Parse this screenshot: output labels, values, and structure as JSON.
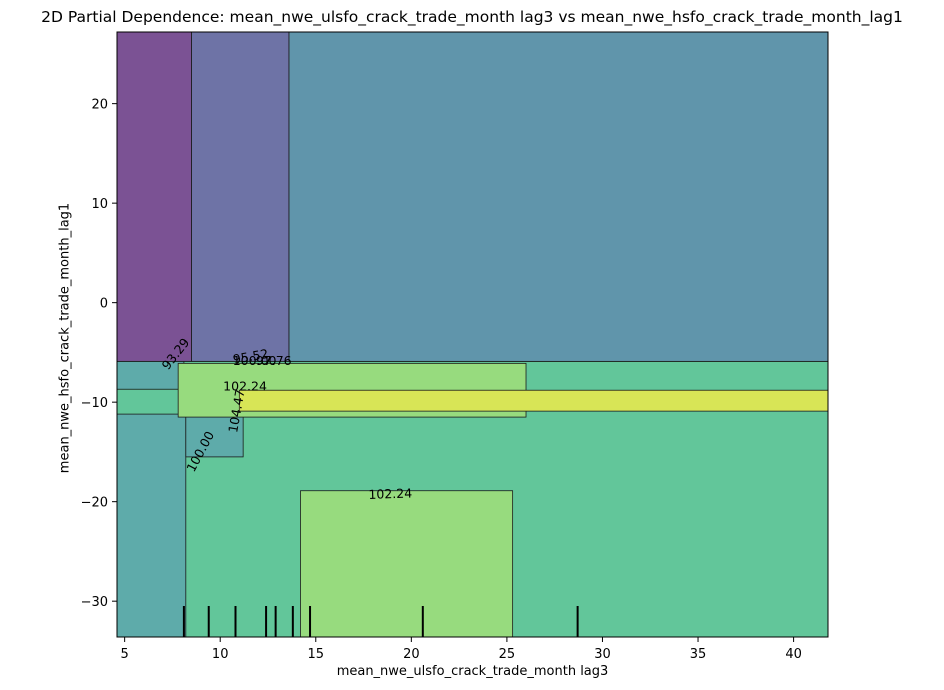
{
  "chart_data": {
    "type": "heatmap",
    "title": "2D Partial Dependence: mean_nwe_ulsfo_crack_trade_month lag3 vs mean_nwe_hsfo_crack_trade_month_lag1",
    "xlabel": "mean_nwe_ulsfo_crack_trade_month lag3",
    "ylabel": "mean_nwe_hsfo_crack_trade_month_lag1",
    "xlim": [
      4.6,
      41.8
    ],
    "ylim": [
      -33.6,
      27.2
    ],
    "x_ticks": [
      5,
      10,
      15,
      20,
      25,
      30,
      35,
      40
    ],
    "y_ticks": [
      -30,
      -20,
      -10,
      0,
      10,
      20
    ],
    "grid": false,
    "legend": "none",
    "contour_levels": [
      93.29,
      95.52,
      97.76,
      100.0,
      102.24,
      104.47
    ],
    "level_colors": {
      "below_93.29": "#7b5294",
      "93.29_95.52": "#6e73a6",
      "95.52_97.76": "#6095ab",
      "97.76_100.00": "#5eabaa",
      "100.00_102.24": "#62c69a",
      "102.24_104.47": "#97db7e",
      "above_104.47": "#d8e556"
    },
    "regions": [
      {
        "level": "100.00_102.24",
        "x": [
          4.6,
          41.8
        ],
        "y": [
          -33.6,
          -5.9
        ]
      },
      {
        "level": "97.76_100.00",
        "x": [
          4.6,
          8.2
        ],
        "y": [
          -33.6,
          -11.2
        ]
      },
      {
        "level": "97.76_100.00",
        "x": [
          8.2,
          11.2
        ],
        "y": [
          -15.5,
          -11.2
        ]
      },
      {
        "level": "97.76_100.00",
        "x": [
          4.6,
          8.1
        ],
        "y": [
          -8.7,
          -5.9
        ]
      },
      {
        "level": "102.24_104.47",
        "x": [
          14.2,
          25.3
        ],
        "y": [
          -33.6,
          -18.9
        ]
      },
      {
        "level": "102.24_104.47",
        "x": [
          7.8,
          26.0
        ],
        "y": [
          -11.5,
          -6.1
        ]
      },
      {
        "level": "above_104.47",
        "x": [
          11.0,
          41.8
        ],
        "y": [
          -10.9,
          -8.8
        ]
      },
      {
        "level": "below_93.29",
        "x": [
          4.6,
          8.5
        ],
        "y": [
          -5.9,
          27.2
        ]
      },
      {
        "level": "93.29_95.52",
        "x": [
          8.5,
          13.6
        ],
        "y": [
          -5.9,
          27.2
        ]
      },
      {
        "level": "95.52_97.76",
        "x": [
          13.6,
          41.8
        ],
        "y": [
          -5.9,
          27.2
        ]
      }
    ],
    "contour_labels": [
      {
        "text": "93.29",
        "x": 7.7,
        "y": -5.2,
        "rotation": -52
      },
      {
        "text": "95.52",
        "x": 11.6,
        "y": -5.5,
        "rotation": -10
      },
      {
        "text": "100.00",
        "x": 11.8,
        "y": -5.9,
        "rotation": 0
      },
      {
        "text": "97.76",
        "x": 12.8,
        "y": -5.9,
        "rotation": 0
      },
      {
        "text": "102.24",
        "x": 11.3,
        "y": -8.5,
        "rotation": 0
      },
      {
        "text": "104.47",
        "x": 10.9,
        "y": -10.9,
        "rotation": -80
      },
      {
        "text": "100.00",
        "x": 9.0,
        "y": -15.0,
        "rotation": -62
      },
      {
        "text": "102.24",
        "x": 18.9,
        "y": -19.3,
        "rotation": -2
      }
    ],
    "rug_x": [
      8.1,
      9.4,
      10.8,
      12.4,
      12.9,
      13.8,
      14.7,
      20.6,
      28.7
    ]
  }
}
